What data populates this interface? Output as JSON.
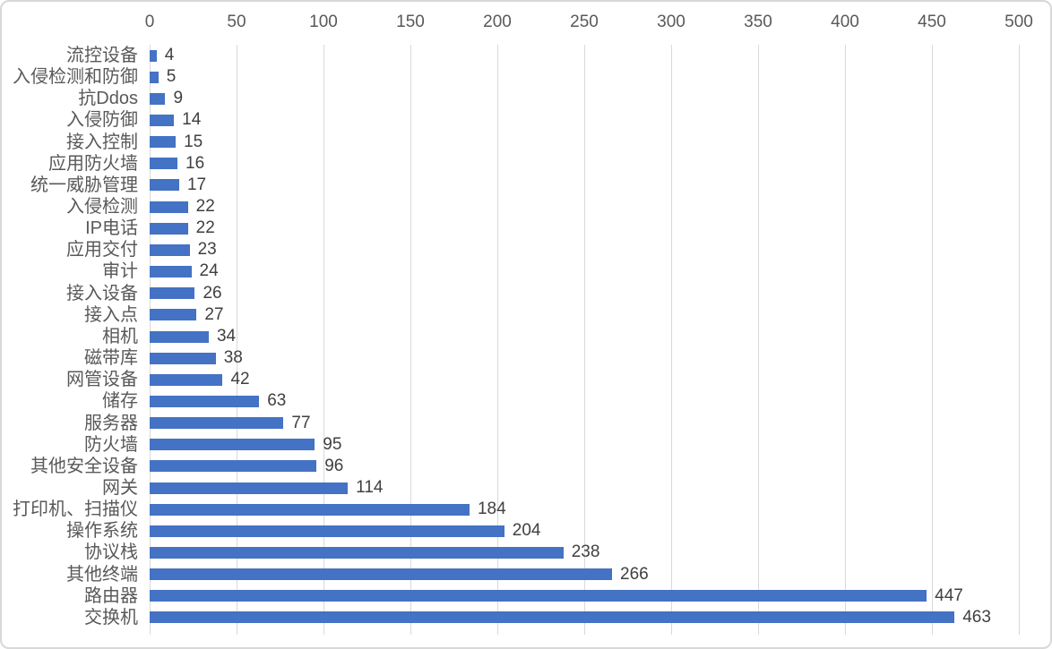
{
  "chart": {
    "background": "#FFFFFF",
    "frame_border_color": "#D8D8D8"
  },
  "chart_data": {
    "type": "bar",
    "orientation": "horizontal",
    "title": "",
    "xlabel": "",
    "ylabel": "",
    "legend": false,
    "grid": true,
    "data_labels_shown": true,
    "categories": [
      "流控设备",
      "入侵检测和防御",
      "抗Ddos",
      "入侵防御",
      "接入控制",
      "应用防火墙",
      "统一威胁管理",
      "入侵检测",
      "IP电话",
      "应用交付",
      "审计",
      "接入设备",
      "接入点",
      "相机",
      "磁带库",
      "网管设备",
      "储存",
      "服务器",
      "防火墙",
      "其他安全设备",
      "网关",
      "打印机、扫描仪",
      "操作系统",
      "协议栈",
      "其他终端",
      "路由器",
      "交换机"
    ],
    "values": [
      4,
      5,
      9,
      14,
      15,
      16,
      17,
      22,
      22,
      23,
      24,
      26,
      27,
      34,
      38,
      42,
      63,
      77,
      95,
      96,
      114,
      184,
      204,
      238,
      266,
      447,
      463
    ],
    "value_labels": [
      "4",
      "5",
      "9",
      "14",
      "15",
      "16",
      "17",
      "22",
      "22",
      "23",
      "24",
      "26",
      "27",
      "34",
      "38",
      "42",
      "63",
      "77",
      "95",
      "96",
      "114",
      "184",
      "204",
      "238",
      "266",
      "447",
      "463"
    ],
    "x_axis": {
      "min": 0,
      "max": 500,
      "tick_interval": 50,
      "tick_labels": [
        "0",
        "50",
        "100",
        "150",
        "200",
        "250",
        "300",
        "350",
        "400",
        "450",
        "500"
      ],
      "labels_position": "top",
      "tick_marks_position": "bottom"
    },
    "colors": {
      "bar": "#4472C4",
      "gridline": "#D9D9D9",
      "axis_line": "#D9D9D9",
      "axis_text": "#595959",
      "category_text": "#595959",
      "value_text": "#404040"
    }
  }
}
